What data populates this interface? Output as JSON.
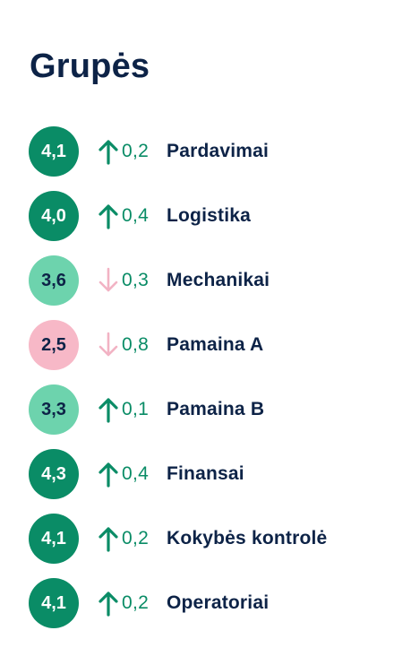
{
  "title": "Grupės",
  "colors": {
    "high": "#0a8c66",
    "mid": "#6dd3ad",
    "low": "#f7b8c7",
    "up_arrow": "#0a8c66",
    "down_arrow": "#f2b3c4",
    "text": "#0d2347"
  },
  "groups": [
    {
      "score": "4,1",
      "level": "high",
      "direction": "up",
      "change": "0,2",
      "name": "Pardavimai"
    },
    {
      "score": "4,0",
      "level": "high",
      "direction": "up",
      "change": "0,4",
      "name": "Logistika"
    },
    {
      "score": "3,6",
      "level": "mid",
      "direction": "down",
      "change": "0,3",
      "name": "Mechanikai"
    },
    {
      "score": "2,5",
      "level": "low",
      "direction": "down",
      "change": "0,8",
      "name": "Pamaina A"
    },
    {
      "score": "3,3",
      "level": "mid",
      "direction": "up",
      "change": "0,1",
      "name": "Pamaina B"
    },
    {
      "score": "4,3",
      "level": "high",
      "direction": "up",
      "change": "0,4",
      "name": "Finansai"
    },
    {
      "score": "4,1",
      "level": "high",
      "direction": "up",
      "change": "0,2",
      "name": "Kokybės kontrolė"
    },
    {
      "score": "4,1",
      "level": "high",
      "direction": "up",
      "change": "0,2",
      "name": "Operatoriai"
    }
  ]
}
